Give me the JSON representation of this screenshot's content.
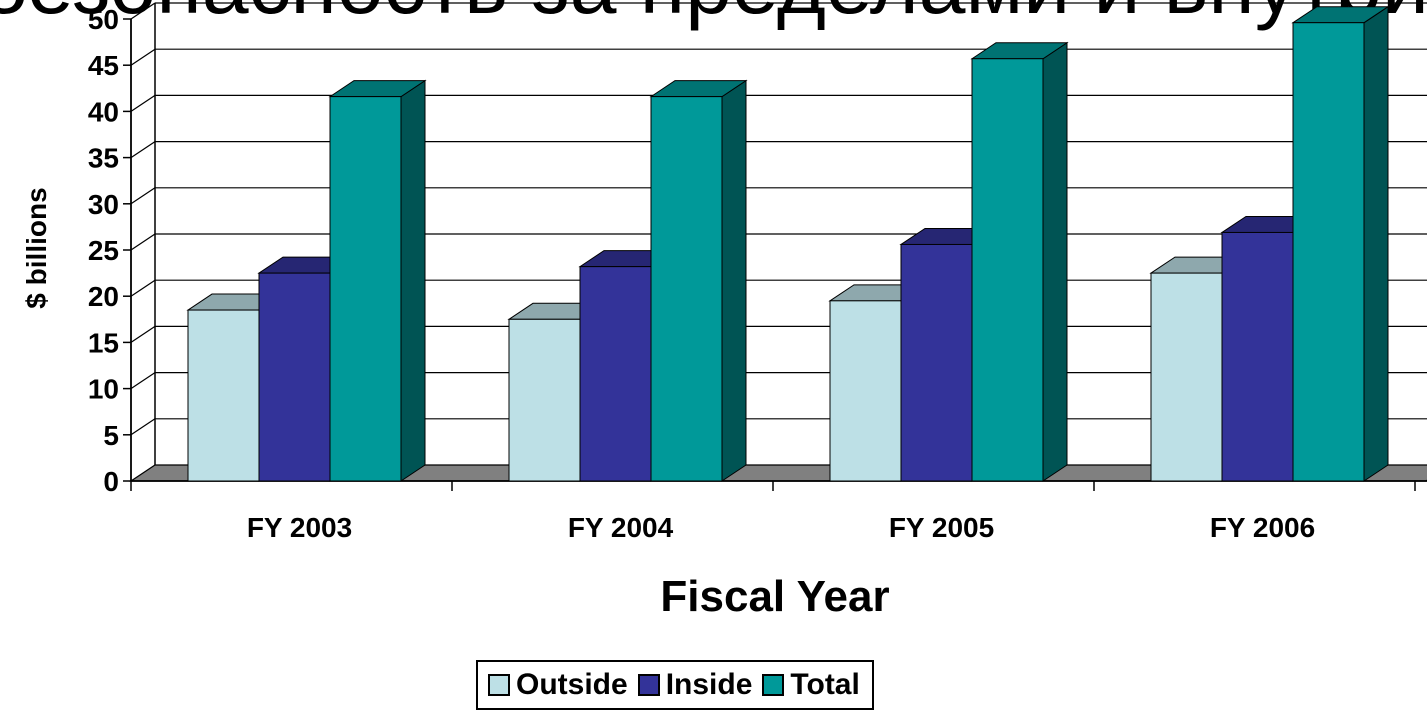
{
  "title": "безопасность за пределами и внутри",
  "chart_data": {
    "type": "bar",
    "xlabel": "Fiscal Year",
    "ylabel": "$ billions",
    "categories": [
      "FY 2003",
      "FY 2004",
      "FY 2005",
      "FY 2006"
    ],
    "ylim": [
      0,
      50
    ],
    "yticks": [
      "0",
      "5",
      "10",
      "15",
      "20",
      "25",
      "30",
      "35",
      "40",
      "45",
      "50"
    ],
    "grid": true,
    "legend_position": "bottom",
    "series": [
      {
        "name": "Outside",
        "values": [
          18.5,
          17.5,
          19.5,
          22.5
        ],
        "color": "#bde0e6"
      },
      {
        "name": "Inside",
        "values": [
          22.5,
          23.2,
          25.6,
          26.9
        ],
        "color": "#333399"
      },
      {
        "name": "Total",
        "values": [
          41.6,
          41.6,
          45.7,
          49.6
        ],
        "color": "#009999"
      }
    ]
  }
}
